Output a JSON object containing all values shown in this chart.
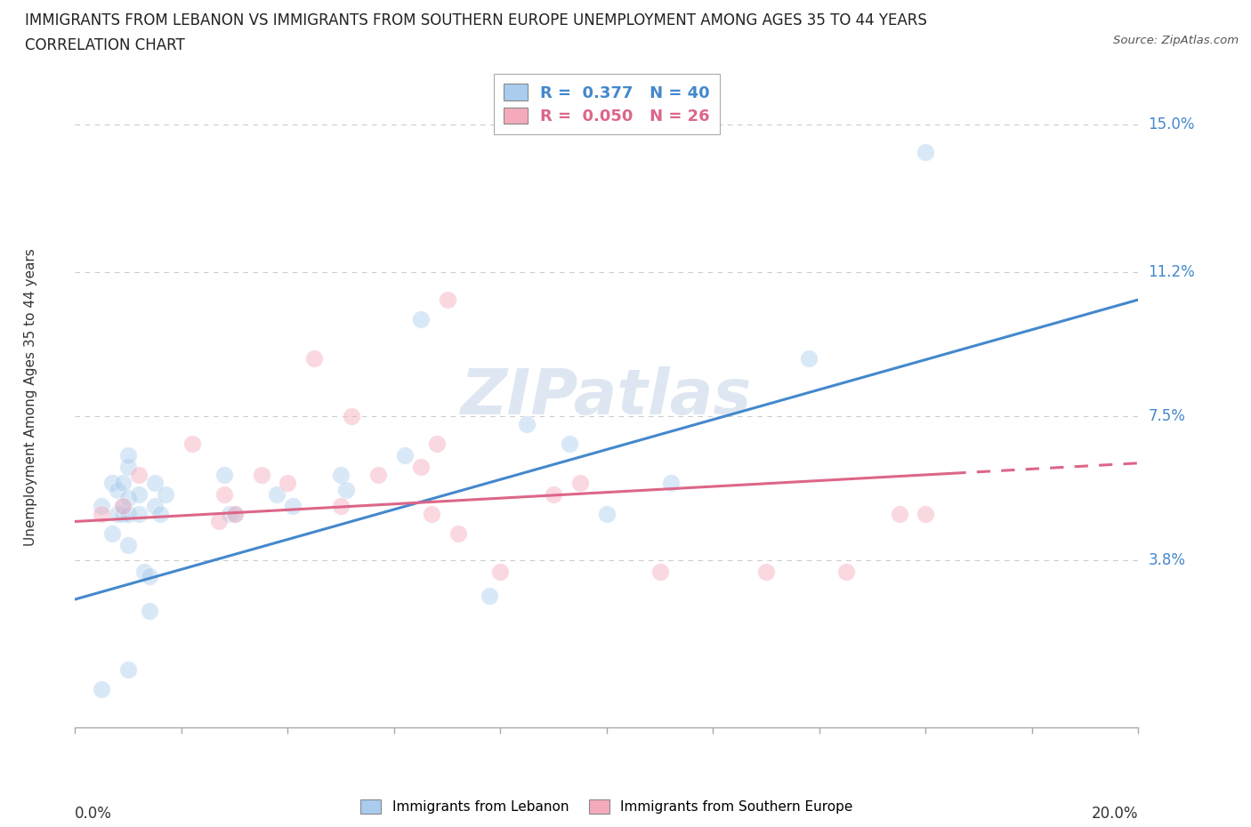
{
  "title_line1": "IMMIGRANTS FROM LEBANON VS IMMIGRANTS FROM SOUTHERN EUROPE UNEMPLOYMENT AMONG AGES 35 TO 44 YEARS",
  "title_line2": "CORRELATION CHART",
  "source_text": "Source: ZipAtlas.com",
  "ylabel": "Unemployment Among Ages 35 to 44 years",
  "xlim": [
    0.0,
    0.2
  ],
  "ylim": [
    -0.005,
    0.165
  ],
  "yticks": [
    0.038,
    0.075,
    0.112,
    0.15
  ],
  "ytick_labels": [
    "3.8%",
    "7.5%",
    "11.2%",
    "15.0%"
  ],
  "xtick_labels": [
    "0.0%",
    "20.0%"
  ],
  "legend_entries": [
    {
      "label": "R =  0.377   N = 40",
      "color": "#a8c8e8"
    },
    {
      "label": "R =  0.050   N = 26",
      "color": "#f4a8b8"
    }
  ],
  "lebanon_scatter_x": [
    0.005,
    0.01,
    0.005,
    0.007,
    0.007,
    0.008,
    0.008,
    0.009,
    0.009,
    0.009,
    0.01,
    0.01,
    0.01,
    0.01,
    0.01,
    0.012,
    0.012,
    0.013,
    0.014,
    0.014,
    0.015,
    0.015,
    0.016,
    0.017,
    0.028,
    0.029,
    0.03,
    0.038,
    0.041,
    0.05,
    0.051,
    0.062,
    0.065,
    0.078,
    0.085,
    0.093,
    0.1,
    0.112,
    0.138,
    0.16
  ],
  "lebanon_scatter_y": [
    0.005,
    0.01,
    0.052,
    0.058,
    0.045,
    0.05,
    0.056,
    0.05,
    0.052,
    0.058,
    0.042,
    0.05,
    0.054,
    0.062,
    0.065,
    0.05,
    0.055,
    0.035,
    0.025,
    0.034,
    0.052,
    0.058,
    0.05,
    0.055,
    0.06,
    0.05,
    0.05,
    0.055,
    0.052,
    0.06,
    0.056,
    0.065,
    0.1,
    0.029,
    0.073,
    0.068,
    0.05,
    0.058,
    0.09,
    0.143
  ],
  "southern_europe_scatter_x": [
    0.005,
    0.009,
    0.012,
    0.022,
    0.027,
    0.028,
    0.03,
    0.035,
    0.04,
    0.045,
    0.05,
    0.052,
    0.057,
    0.065,
    0.067,
    0.068,
    0.07,
    0.072,
    0.08,
    0.09,
    0.095,
    0.11,
    0.13,
    0.145,
    0.155,
    0.16
  ],
  "southern_europe_scatter_y": [
    0.05,
    0.052,
    0.06,
    0.068,
    0.048,
    0.055,
    0.05,
    0.06,
    0.058,
    0.09,
    0.052,
    0.075,
    0.06,
    0.062,
    0.05,
    0.068,
    0.105,
    0.045,
    0.035,
    0.055,
    0.058,
    0.035,
    0.035,
    0.035,
    0.05,
    0.05
  ],
  "lebanon_color": "#aaccee",
  "southern_europe_color": "#f4aabb",
  "lebanon_trend_x": [
    0.0,
    0.2
  ],
  "lebanon_trend_y": [
    0.028,
    0.105
  ],
  "southern_europe_trend_x": [
    0.0,
    0.2
  ],
  "southern_europe_trend_y": [
    0.048,
    0.063
  ],
  "trend_lebanon_color": "#4488cc",
  "trend_southern_europe_color": "#dd6688",
  "watermark": "ZIPatlas",
  "background_color": "#ffffff",
  "scatter_size": 200,
  "scatter_alpha": 0.45,
  "title_fontsize": 12,
  "axis_label_fontsize": 11,
  "tick_label_fontsize": 12,
  "legend_fontsize": 13
}
